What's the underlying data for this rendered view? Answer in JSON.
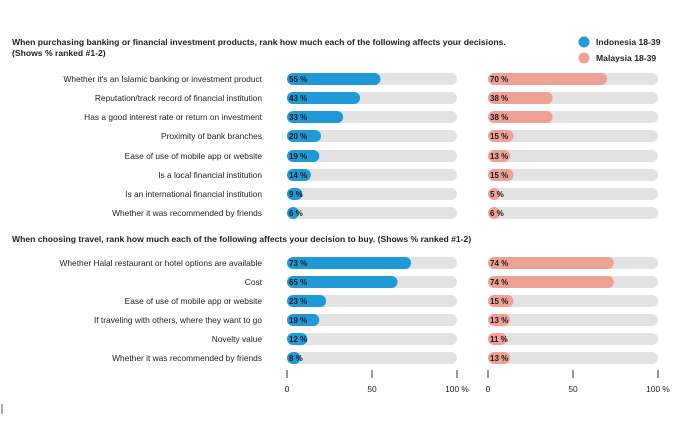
{
  "legend": [
    {
      "name": "Indonesia 18-39",
      "color": "#1f9ad6"
    },
    {
      "name": "Malaysia 18-39",
      "color": "#f0a196"
    }
  ],
  "axis_ticks": [
    "0",
    "50",
    "100 %"
  ],
  "colors": {
    "track": "#e3e3e3",
    "text": "#222222",
    "axis": "#333333"
  },
  "chart_data": [
    {
      "type": "bar",
      "title": "When purchasing banking or financial investment products, rank how much each of the following affects your decisions.",
      "subtitle": "(Shows % ranked #1-2)",
      "categories": [
        "Whether it's an Islamic banking or investment product",
        "Reputation/track record of financial institution",
        "Has a good interest rate or return on investment",
        "Proximity of bank branches",
        "Ease of use of mobile app or website",
        "Is a local financial institution",
        "Is an international financial institution",
        "Whether it was recommended by friends"
      ],
      "series": [
        {
          "name": "Indonesia 18-39",
          "values": [
            55,
            43,
            33,
            20,
            19,
            14,
            9,
            6
          ],
          "labels": [
            "55 %",
            "43 %",
            "33 %",
            "20 %",
            "19 %",
            "14 %",
            "9 %",
            "6 %"
          ]
        },
        {
          "name": "Malaysia 18-39",
          "values": [
            70,
            38,
            38,
            15,
            13,
            15,
            5,
            6
          ],
          "labels": [
            "70 %",
            "38 %",
            "38 %",
            "15 %",
            "13 %",
            "15 %",
            "5 %",
            "6 %"
          ]
        }
      ],
      "xlim": [
        0,
        100
      ]
    },
    {
      "type": "bar",
      "title": "When choosing travel, rank how much each of the following affects your decision to buy. (Shows % ranked #1-2)",
      "categories": [
        "Whether Halal restaurant or hotel options are available",
        "Cost",
        "Ease of use of mobile app or website",
        "If traveling with others, where they want to go",
        "Novelty value",
        "Whether it was recommended by friends"
      ],
      "series": [
        {
          "name": "Indonesia 18-39",
          "values": [
            73,
            65,
            23,
            19,
            12,
            8
          ],
          "labels": [
            "73 %",
            "65 %",
            "23 %",
            "19 %",
            "12 %",
            "8 %"
          ]
        },
        {
          "name": "Malaysia 18-39",
          "values": [
            74,
            74,
            15,
            13,
            11,
            13
          ],
          "labels": [
            "74 %",
            "74 %",
            "15 %",
            "13 %",
            "11 %",
            "13 %"
          ]
        }
      ],
      "xlim": [
        0,
        100
      ]
    }
  ]
}
